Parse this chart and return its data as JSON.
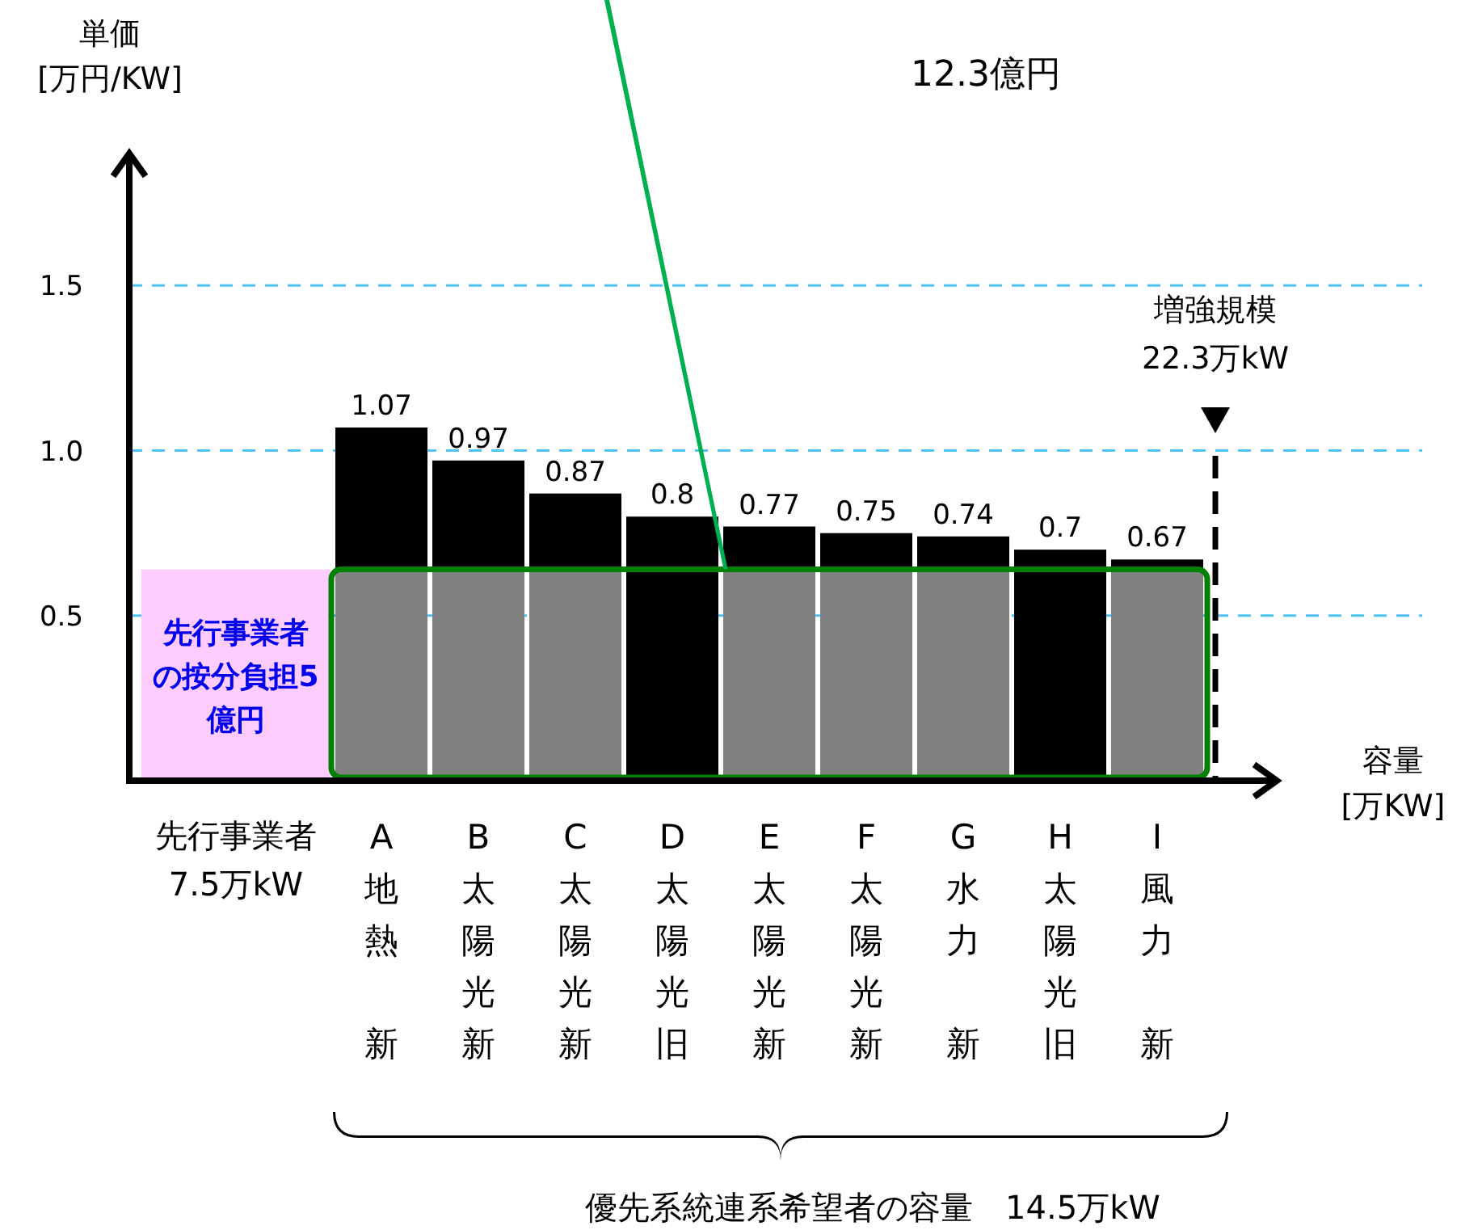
{
  "chart_data": {
    "type": "bar",
    "stacked": true,
    "categories": [
      "先行事業者7.5万kW",
      "A地熱新",
      "B太陽光新",
      "C太陽光新",
      "D太陽光旧",
      "E太陽光新",
      "F太陽光新",
      "G水力新",
      "H太陽光旧",
      "I風力新"
    ],
    "series": [
      {
        "colors": [
          "#ffccff",
          "#808080",
          "#808080",
          "#808080",
          "#000000",
          "#808080",
          "#808080",
          "#808080",
          "#000000",
          "#808080"
        ],
        "values": [
          0.64,
          0.64,
          0.64,
          0.64,
          0.64,
          0.64,
          0.64,
          0.64,
          0.64,
          0.64
        ],
        "value_labels": [
          "先行事業者の按分負担5億円",
          null,
          null,
          null,
          null,
          null,
          null,
          null,
          null,
          null
        ]
      },
      {
        "color": "#000000",
        "values": [
          null,
          0.43,
          0.33,
          0.23,
          0.16,
          0.13,
          0.11,
          0.1,
          0.06,
          0.03
        ]
      }
    ],
    "totals": [
      null,
      "1.07",
      "0.97",
      "0.87",
      "0.8",
      "0.77",
      "0.75",
      "0.74",
      "0.7",
      "0.67"
    ],
    "ylim": [
      0,
      1.9
    ],
    "yticks": [
      {
        "value": 0.5,
        "label": "0.5"
      },
      {
        "value": 1,
        "label": "1.0"
      },
      {
        "value": 1.5,
        "label": "1.5"
      }
    ],
    "grid": "y",
    "ylabel": "単価\n[万円/KW]",
    "xlabel": "容量\n[万KW]",
    "annotations": [
      "12.3億円",
      "増強規模\n22.3万kW",
      "優先系統連系希望者の容量　14.5万kW"
    ]
  }
}
